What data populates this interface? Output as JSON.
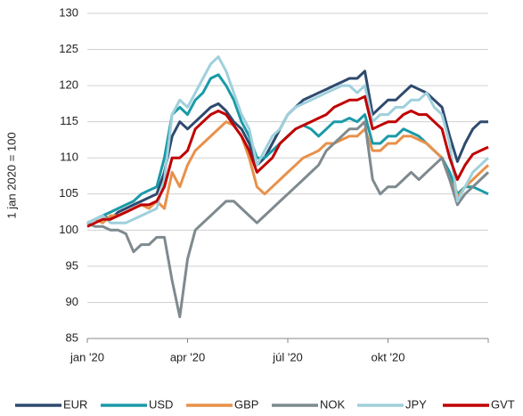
{
  "chart_data": {
    "type": "line",
    "ylabel": "1 jan 2020 = 100",
    "categories": [
      "jan '20",
      null,
      null,
      null,
      null,
      null,
      null,
      null,
      null,
      null,
      null,
      null,
      null,
      "apr '20",
      null,
      null,
      null,
      null,
      null,
      null,
      null,
      null,
      null,
      null,
      null,
      null,
      "júl '20",
      null,
      null,
      null,
      null,
      null,
      null,
      null,
      null,
      null,
      null,
      null,
      null,
      "okt '20",
      null,
      null,
      null,
      null,
      null,
      null,
      null,
      null,
      null,
      null,
      null,
      null,
      null
    ],
    "series": [
      {
        "name": "EUR",
        "color": "#2e4a6e",
        "values": [
          101,
          101.5,
          102,
          101.5,
          102.5,
          103,
          103.5,
          104,
          104.5,
          105,
          108,
          113,
          115,
          114,
          115,
          116,
          117,
          117.5,
          116.5,
          115,
          114,
          112,
          109,
          110,
          112,
          114,
          116,
          117,
          118,
          118.5,
          119,
          119.5,
          120,
          120.5,
          121,
          121,
          122,
          116,
          117,
          118,
          118,
          119,
          120,
          119.5,
          119,
          118,
          117,
          113,
          109.5,
          112,
          114,
          115,
          115
        ]
      },
      {
        "name": "USD",
        "color": "#1a9aa8",
        "values": [
          101,
          101.5,
          102,
          102.5,
          103,
          103.5,
          104,
          105,
          105.5,
          106,
          110,
          116,
          117,
          116,
          118,
          119,
          121,
          121.5,
          120,
          118,
          115,
          113,
          110,
          110,
          111,
          112,
          113,
          114,
          114.5,
          114,
          113,
          114,
          115,
          115,
          115.5,
          115,
          116,
          112,
          112,
          113,
          113,
          114,
          113.5,
          113,
          112,
          111,
          110,
          108,
          105,
          106,
          106,
          105.5,
          105
        ]
      },
      {
        "name": "GBP",
        "color": "#e8914a",
        "values": [
          101,
          101.5,
          101,
          102,
          102,
          102.5,
          103,
          103.5,
          103,
          104,
          103,
          108,
          106,
          109,
          111,
          112,
          113,
          114,
          115,
          114.5,
          113,
          110,
          106,
          105,
          106,
          107,
          108,
          109,
          110,
          110.5,
          111,
          112,
          112,
          112.5,
          113,
          113,
          114,
          111,
          111,
          112,
          112,
          113,
          113,
          112.5,
          112,
          111,
          110,
          107,
          104.5,
          106,
          107,
          108,
          109
        ]
      },
      {
        "name": "NOK",
        "color": "#7f8a8f",
        "values": [
          101,
          100.5,
          100.5,
          100,
          100,
          99.5,
          97,
          98,
          98,
          99,
          99,
          93,
          88,
          96,
          100,
          101,
          102,
          103,
          104,
          104,
          103,
          102,
          101,
          102,
          103,
          104,
          105,
          106,
          107,
          108,
          109,
          111,
          112,
          113,
          114,
          114,
          115,
          107,
          105,
          106,
          106,
          107,
          108,
          107,
          108,
          109,
          110,
          107,
          103.5,
          105,
          106,
          107,
          108
        ]
      },
      {
        "name": "JPY",
        "color": "#9fd0dc",
        "values": [
          101,
          101.5,
          102,
          101,
          101,
          101,
          101.5,
          102,
          102.5,
          103,
          107,
          116,
          118,
          117,
          119,
          121,
          123,
          124,
          122,
          119,
          116,
          114,
          109,
          111,
          113,
          114,
          116,
          117,
          117.5,
          118,
          118.5,
          119,
          119.5,
          120,
          120,
          119,
          120,
          115,
          116,
          116,
          117,
          117,
          118,
          118,
          119,
          117,
          116,
          112,
          104,
          106,
          108,
          109,
          110
        ]
      },
      {
        "name": "GVT",
        "color": "#c00000",
        "values": [
          100.5,
          101,
          101.5,
          101.5,
          102,
          102.5,
          103,
          103.5,
          103.5,
          104,
          106,
          110,
          110,
          111,
          114,
          115,
          116,
          116.5,
          116,
          114.5,
          113,
          111,
          108,
          109,
          110,
          112,
          113,
          114,
          114.5,
          115,
          115.5,
          116,
          117,
          117.5,
          118,
          118,
          118.5,
          114,
          114.5,
          115,
          115,
          116,
          116.5,
          116,
          116,
          115,
          114,
          110,
          107,
          109,
          110.5,
          111,
          111.5
        ]
      }
    ],
    "ylim": [
      85,
      130
    ],
    "yticks": [
      85,
      90,
      95,
      100,
      105,
      110,
      115,
      120,
      125,
      130
    ],
    "grid": true
  }
}
